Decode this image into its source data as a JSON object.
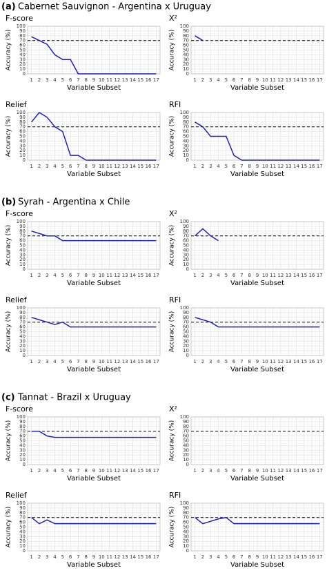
{
  "sections": [
    {
      "label": "(a)",
      "title": "Cabernet Sauvignon - Argentina x Uruguay"
    },
    {
      "label": "(b)",
      "title": "Syrah - Argentina x Chile"
    },
    {
      "label": "(c)",
      "title": "Tannat - Brazil x Uruguay"
    }
  ],
  "chart_data": [
    {
      "type": "line",
      "title": "F-score",
      "xlabel": "Variable Subset",
      "ylabel": "Accuracy (%)",
      "x": [
        1,
        2,
        3,
        4,
        5,
        6,
        7,
        8,
        9,
        10,
        11,
        12,
        13,
        14,
        15,
        16,
        17
      ],
      "xlim": [
        0.5,
        17.5
      ],
      "xticks": [
        1,
        2,
        3,
        4,
        5,
        6,
        7,
        8,
        9,
        10,
        11,
        12,
        13,
        14,
        15,
        16,
        17
      ],
      "ylim": [
        0,
        100
      ],
      "yticks": [
        0,
        10,
        20,
        30,
        40,
        50,
        60,
        70,
        80,
        90,
        100
      ],
      "reference_line": 70,
      "grid": true,
      "series": [
        {
          "color": "#1f1fbf",
          "values": [
            78,
            70,
            62,
            40,
            30,
            30,
            0,
            0,
            0,
            0,
            0,
            0,
            0,
            0,
            0,
            0,
            0
          ]
        }
      ]
    },
    {
      "type": "line",
      "title": "X²",
      "xlabel": "Variable Subset",
      "ylabel": "Accuracy (%)",
      "x": [
        1,
        2,
        3,
        4,
        5,
        6,
        7,
        8,
        9,
        10,
        11,
        12,
        13,
        14,
        15,
        16,
        17
      ],
      "xlim": [
        0.5,
        17.5
      ],
      "xticks": [
        1,
        2,
        3,
        4,
        5,
        6,
        7,
        8,
        9,
        10,
        11,
        12,
        13,
        14,
        15,
        16,
        17
      ],
      "ylim": [
        0,
        100
      ],
      "yticks": [
        0,
        10,
        20,
        30,
        40,
        50,
        60,
        70,
        80,
        90,
        100
      ],
      "reference_line": 70,
      "grid": true,
      "series": [
        {
          "color": "#1f1fbf",
          "values": [
            80,
            70,
            null,
            null,
            null,
            null,
            null,
            null,
            null,
            null,
            null,
            null,
            null,
            null,
            null,
            null,
            null
          ]
        }
      ]
    },
    {
      "type": "line",
      "title": "Relief",
      "xlabel": "Variable Subset",
      "ylabel": "Accuracy (%)",
      "x": [
        1,
        2,
        3,
        4,
        5,
        6,
        7,
        8,
        9,
        10,
        11,
        12,
        13,
        14,
        15,
        16,
        17
      ],
      "xlim": [
        0.5,
        17.5
      ],
      "xticks": [
        1,
        2,
        3,
        4,
        5,
        6,
        7,
        8,
        9,
        10,
        11,
        12,
        13,
        14,
        15,
        16,
        17
      ],
      "ylim": [
        0,
        100
      ],
      "yticks": [
        0,
        10,
        20,
        30,
        40,
        50,
        60,
        70,
        80,
        90,
        100
      ],
      "reference_line": 70,
      "grid": true,
      "series": [
        {
          "color": "#1f1fbf",
          "values": [
            80,
            100,
            90,
            70,
            60,
            10,
            10,
            0,
            0,
            0,
            0,
            0,
            0,
            0,
            0,
            0,
            0
          ]
        }
      ]
    },
    {
      "type": "line",
      "title": "RFI",
      "xlabel": "Variable Subset",
      "ylabel": "Accuracy (%)",
      "x": [
        1,
        2,
        3,
        4,
        5,
        6,
        7,
        8,
        9,
        10,
        11,
        12,
        13,
        14,
        15,
        16,
        17
      ],
      "xlim": [
        0.5,
        17.5
      ],
      "xticks": [
        1,
        2,
        3,
        4,
        5,
        6,
        7,
        8,
        9,
        10,
        11,
        12,
        13,
        14,
        15,
        16,
        17
      ],
      "ylim": [
        0,
        100
      ],
      "yticks": [
        0,
        10,
        20,
        30,
        40,
        50,
        60,
        70,
        80,
        90,
        100
      ],
      "reference_line": 70,
      "grid": true,
      "series": [
        {
          "color": "#1f1fbf",
          "values": [
            80,
            70,
            50,
            50,
            50,
            10,
            0,
            0,
            0,
            0,
            0,
            0,
            0,
            0,
            0,
            0,
            0
          ]
        }
      ]
    },
    {
      "type": "line",
      "title": "F-score",
      "xlabel": "Variable Subset",
      "ylabel": "Accuracy (%)",
      "x": [
        1,
        2,
        3,
        4,
        5,
        6,
        7,
        8,
        9,
        10,
        11,
        12,
        13,
        14,
        15,
        16,
        17
      ],
      "xlim": [
        0.5,
        17.5
      ],
      "xticks": [
        1,
        2,
        3,
        4,
        5,
        6,
        7,
        8,
        9,
        10,
        11,
        12,
        13,
        14,
        15,
        16,
        17
      ],
      "ylim": [
        0,
        100
      ],
      "yticks": [
        0,
        10,
        20,
        30,
        40,
        50,
        60,
        70,
        80,
        90,
        100
      ],
      "reference_line": 70,
      "grid": true,
      "series": [
        {
          "color": "#1f1fbf",
          "values": [
            80,
            75,
            70,
            70,
            60,
            60,
            60,
            60,
            60,
            60,
            60,
            60,
            60,
            60,
            60,
            60,
            60
          ]
        }
      ]
    },
    {
      "type": "line",
      "title": "X²",
      "xlabel": "Variable Subset",
      "ylabel": "Accuracy (%)",
      "x": [
        1,
        2,
        3,
        4,
        5,
        6,
        7,
        8,
        9,
        10,
        11,
        12,
        13,
        14,
        15,
        16,
        17
      ],
      "xlim": [
        0.5,
        17.5
      ],
      "xticks": [
        1,
        2,
        3,
        4,
        5,
        6,
        7,
        8,
        9,
        10,
        11,
        12,
        13,
        14,
        15,
        16,
        17
      ],
      "ylim": [
        0,
        100
      ],
      "yticks": [
        0,
        10,
        20,
        30,
        40,
        50,
        60,
        70,
        80,
        90,
        100
      ],
      "reference_line": 70,
      "grid": true,
      "series": [
        {
          "color": "#1f1fbf",
          "values": [
            70,
            85,
            70,
            60,
            null,
            null,
            null,
            null,
            null,
            null,
            null,
            null,
            null,
            null,
            null,
            null,
            null
          ]
        }
      ]
    },
    {
      "type": "line",
      "title": "Relief",
      "xlabel": "Variable Subset",
      "ylabel": "Accuracy (%)",
      "x": [
        1,
        2,
        3,
        4,
        5,
        6,
        7,
        8,
        9,
        10,
        11,
        12,
        13,
        14,
        15,
        16,
        17
      ],
      "xlim": [
        0.5,
        17.5
      ],
      "xticks": [
        1,
        2,
        3,
        4,
        5,
        6,
        7,
        8,
        9,
        10,
        11,
        12,
        13,
        14,
        15,
        16,
        17
      ],
      "ylim": [
        0,
        100
      ],
      "yticks": [
        0,
        10,
        20,
        30,
        40,
        50,
        60,
        70,
        80,
        90,
        100
      ],
      "reference_line": 70,
      "grid": true,
      "series": [
        {
          "color": "#1f1fbf",
          "values": [
            80,
            75,
            70,
            65,
            70,
            60,
            60,
            60,
            60,
            60,
            60,
            60,
            60,
            60,
            60,
            60,
            60
          ]
        }
      ]
    },
    {
      "type": "line",
      "title": "RFI",
      "xlabel": "Variable Subset",
      "ylabel": "Accuracy (%)",
      "x": [
        1,
        2,
        3,
        4,
        5,
        6,
        7,
        8,
        9,
        10,
        11,
        12,
        13,
        14,
        15,
        16,
        17
      ],
      "xlim": [
        0.5,
        17.5
      ],
      "xticks": [
        1,
        2,
        3,
        4,
        5,
        6,
        7,
        8,
        9,
        10,
        11,
        12,
        13,
        14,
        15,
        16,
        17
      ],
      "ylim": [
        0,
        100
      ],
      "yticks": [
        0,
        10,
        20,
        30,
        40,
        50,
        60,
        70,
        80,
        90,
        100
      ],
      "reference_line": 70,
      "grid": true,
      "series": [
        {
          "color": "#1f1fbf",
          "values": [
            80,
            75,
            70,
            60,
            60,
            60,
            60,
            60,
            60,
            60,
            60,
            60,
            60,
            60,
            60,
            60,
            60
          ]
        }
      ]
    },
    {
      "type": "line",
      "title": "F-score",
      "xlabel": "Variable Subset",
      "ylabel": "Accuracy (%)",
      "x": [
        1,
        2,
        3,
        4,
        5,
        6,
        7,
        8,
        9,
        10,
        11,
        12,
        13,
        14,
        15,
        16,
        17
      ],
      "xlim": [
        0.5,
        17.5
      ],
      "xticks": [
        1,
        2,
        3,
        4,
        5,
        6,
        7,
        8,
        9,
        10,
        11,
        12,
        13,
        14,
        15,
        16,
        17
      ],
      "ylim": [
        0,
        100
      ],
      "yticks": [
        0,
        10,
        20,
        30,
        40,
        50,
        60,
        70,
        80,
        90,
        100
      ],
      "reference_line": 70,
      "grid": true,
      "series": [
        {
          "color": "#1f1fbf",
          "values": [
            70,
            70,
            60,
            57,
            57,
            57,
            57,
            57,
            57,
            57,
            57,
            57,
            57,
            57,
            57,
            57,
            57
          ]
        }
      ]
    },
    {
      "type": "line",
      "title": "X²",
      "xlabel": "Variable Subset",
      "ylabel": "Accuracy (%)",
      "x": [
        1,
        2,
        3,
        4,
        5,
        6,
        7,
        8,
        9,
        10,
        11,
        12,
        13,
        14,
        15,
        16,
        17
      ],
      "xlim": [
        0.5,
        17.5
      ],
      "xticks": [
        1,
        2,
        3,
        4,
        5,
        6,
        7,
        8,
        9,
        10,
        11,
        12,
        13,
        14,
        15,
        16,
        17
      ],
      "ylim": [
        0,
        100
      ],
      "yticks": [
        0,
        10,
        20,
        30,
        40,
        50,
        60,
        70,
        80,
        90,
        100
      ],
      "reference_line": 70,
      "grid": true,
      "series": [
        {
          "color": "#1f1fbf",
          "values": [
            null,
            null,
            null,
            null,
            null,
            null,
            null,
            null,
            null,
            null,
            null,
            null,
            null,
            null,
            null,
            null,
            null
          ]
        }
      ]
    },
    {
      "type": "line",
      "title": "Relief",
      "xlabel": "Variable Subset",
      "ylabel": "Accuracy (%)",
      "x": [
        1,
        2,
        3,
        4,
        5,
        6,
        7,
        8,
        9,
        10,
        11,
        12,
        13,
        14,
        15,
        16,
        17
      ],
      "xlim": [
        0.5,
        17.5
      ],
      "xticks": [
        1,
        2,
        3,
        4,
        5,
        6,
        7,
        8,
        9,
        10,
        11,
        12,
        13,
        14,
        15,
        16,
        17
      ],
      "ylim": [
        0,
        100
      ],
      "yticks": [
        0,
        10,
        20,
        30,
        40,
        50,
        60,
        70,
        80,
        90,
        100
      ],
      "reference_line": 70,
      "grid": true,
      "series": [
        {
          "color": "#1f1fbf",
          "values": [
            70,
            57,
            65,
            57,
            57,
            57,
            57,
            57,
            57,
            57,
            57,
            57,
            57,
            57,
            57,
            57,
            57
          ]
        }
      ]
    },
    {
      "type": "line",
      "title": "RFI",
      "xlabel": "Variable Subset",
      "ylabel": "Accuracy (%)",
      "x": [
        1,
        2,
        3,
        4,
        5,
        6,
        7,
        8,
        9,
        10,
        11,
        12,
        13,
        14,
        15,
        16,
        17
      ],
      "xlim": [
        0.5,
        17.5
      ],
      "xticks": [
        1,
        2,
        3,
        4,
        5,
        6,
        7,
        8,
        9,
        10,
        11,
        12,
        13,
        14,
        15,
        16,
        17
      ],
      "ylim": [
        0,
        100
      ],
      "yticks": [
        0,
        10,
        20,
        30,
        40,
        50,
        60,
        70,
        80,
        90,
        100
      ],
      "reference_line": 70,
      "grid": true,
      "series": [
        {
          "color": "#1f1fbf",
          "values": [
            70,
            57,
            62,
            67,
            70,
            57,
            57,
            57,
            57,
            57,
            57,
            57,
            57,
            57,
            57,
            57,
            57
          ]
        }
      ]
    }
  ]
}
